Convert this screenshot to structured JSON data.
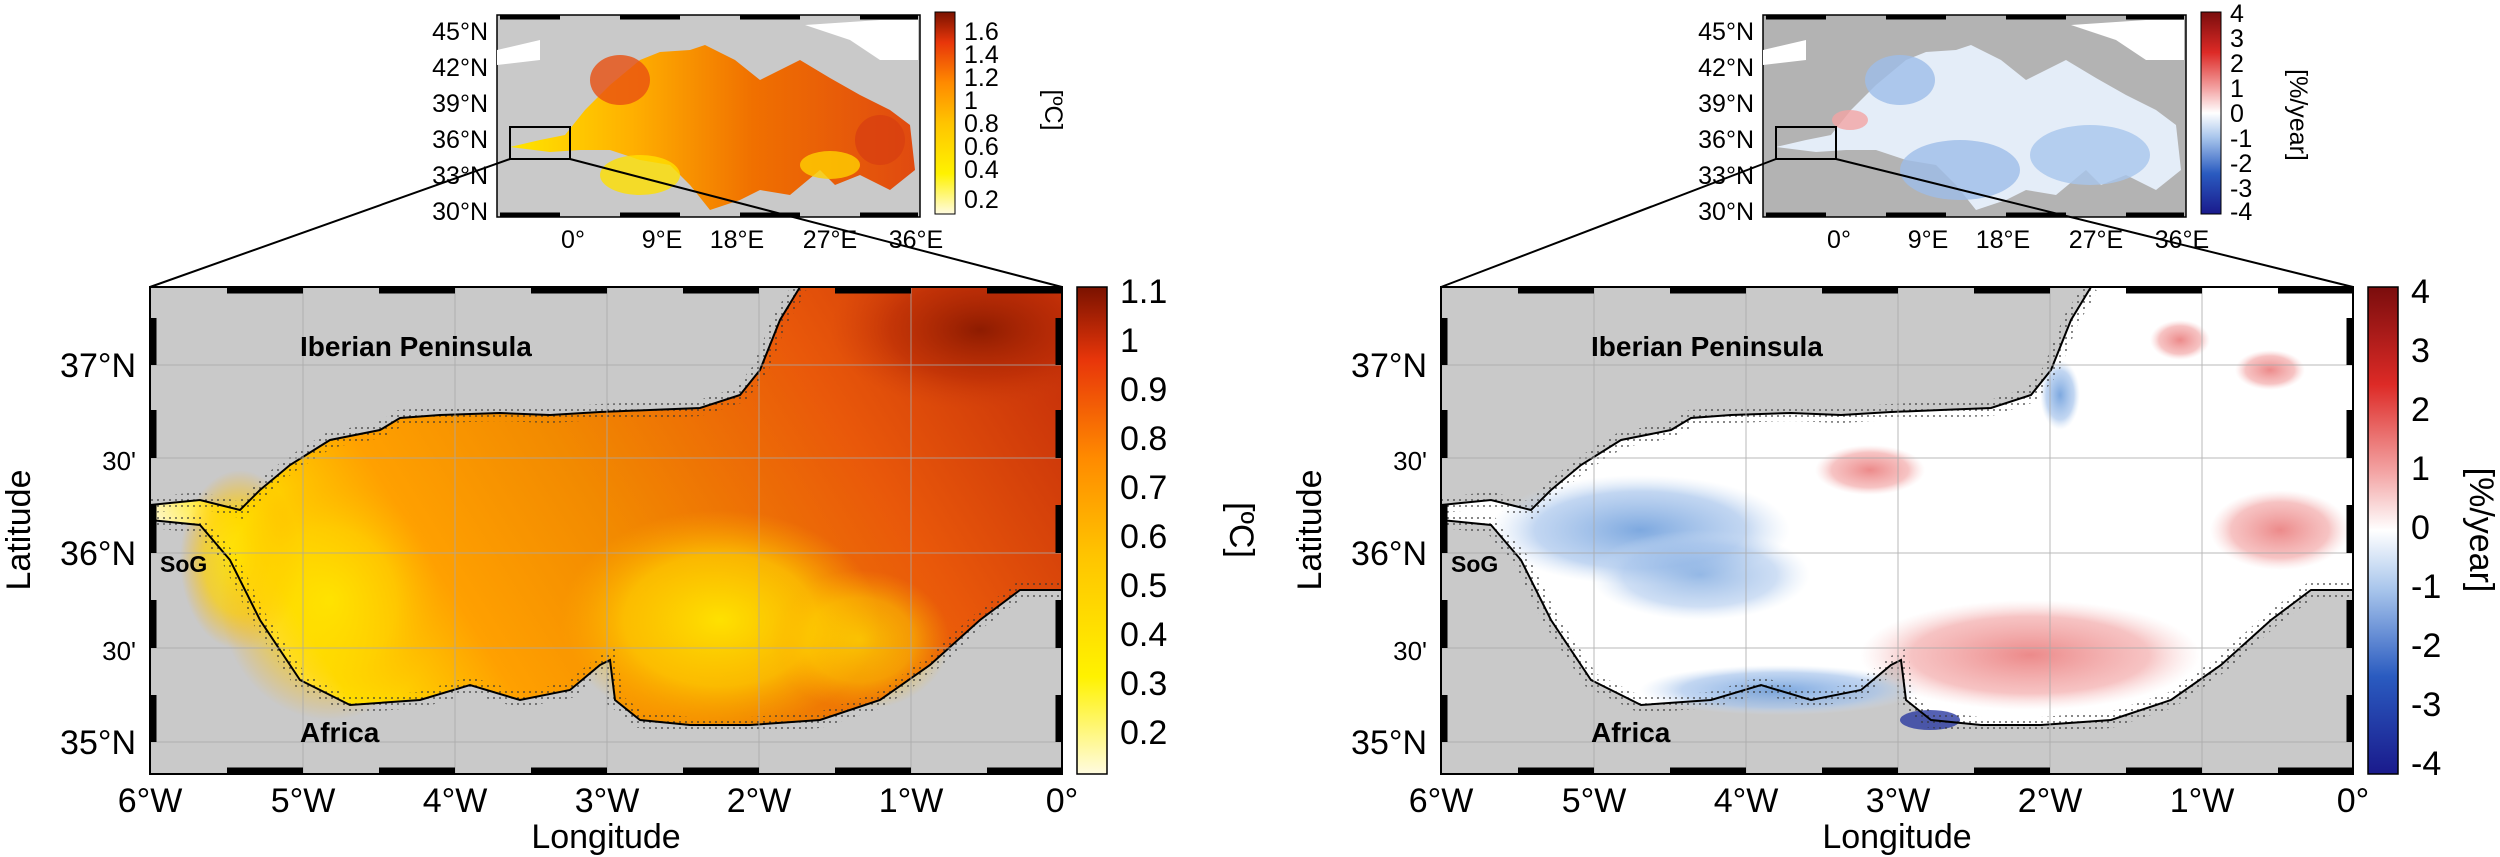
{
  "colors": {
    "land": "#c9c9c9",
    "land_inset": "#b3b3b3",
    "grid": "#a8a8a8",
    "coast": "#000000",
    "sst_ramp": [
      "#fffbe0",
      "#fff200",
      "#ffc400",
      "#ff8a00",
      "#e8360a",
      "#7a1200"
    ],
    "trend_ramp": [
      "#1a1a8c",
      "#3f7bd1",
      "#a9c6ec",
      "#ffffff",
      "#f3a4a4",
      "#dd2a26",
      "#7a0d0d"
    ]
  },
  "panels": [
    {
      "id": "left",
      "inset": {
        "lat_ticks": [
          "45°N",
          "42°N",
          "39°N",
          "36°N",
          "33°N",
          "30°N"
        ],
        "lon_ticks": [
          "0°",
          "9°E",
          "18°E",
          "27°E",
          "36°E"
        ],
        "colorbar_ticks": [
          "1.6",
          "1.4",
          "1.2",
          "1",
          "0.8",
          "0.6",
          "0.4",
          "0.2"
        ],
        "colorbar_unit": "[ºC]"
      },
      "main": {
        "lat_ticks": [
          "37°N",
          "30'",
          "36°N",
          "30'",
          "35°N"
        ],
        "lon_ticks": [
          "6°W",
          "5°W",
          "4°W",
          "3°W",
          "2°W",
          "1°W",
          "0°"
        ],
        "xlabel": "Longitude",
        "ylabel": "Latitude",
        "labels": {
          "north": "Iberian Peninsula",
          "south": "Africa",
          "strait": "SoG"
        },
        "colorbar_ticks": [
          "1.1",
          "1",
          "0.9",
          "0.8",
          "0.7",
          "0.6",
          "0.5",
          "0.4",
          "0.3",
          "0.2"
        ],
        "colorbar_unit": "[ºC]"
      }
    },
    {
      "id": "right",
      "inset": {
        "lat_ticks": [
          "45°N",
          "42°N",
          "39°N",
          "36°N",
          "33°N",
          "30°N"
        ],
        "lon_ticks": [
          "0°",
          "9°E",
          "18°E",
          "27°E",
          "36°E"
        ],
        "colorbar_ticks": [
          "4",
          "3",
          "2",
          "1",
          "0",
          "-1",
          "-2",
          "-3",
          "-4"
        ],
        "colorbar_unit": "[%/year]"
      },
      "main": {
        "lat_ticks": [
          "37°N",
          "30'",
          "36°N",
          "30'",
          "35°N"
        ],
        "lon_ticks": [
          "6°W",
          "5°W",
          "4°W",
          "3°W",
          "2°W",
          "1°W",
          "0°"
        ],
        "xlabel": "Longitude",
        "ylabel": "Latitude",
        "labels": {
          "north": "Iberian Peninsula",
          "south": "Africa",
          "strait": "SoG"
        },
        "colorbar_ticks": [
          "4",
          "3",
          "2",
          "1",
          "0",
          "-1",
          "-2",
          "-3",
          "-4"
        ],
        "colorbar_unit": "[%/year]"
      }
    }
  ]
}
